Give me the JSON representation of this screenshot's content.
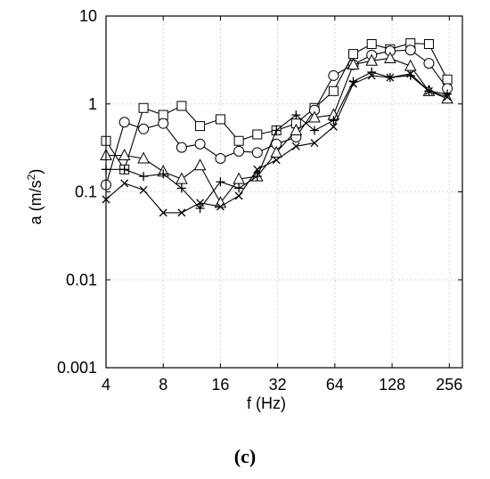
{
  "caption": "(c)",
  "chart_data": {
    "type": "line",
    "title": "",
    "xlabel": "f (Hz)",
    "ylabel_main": "a (m/s",
    "ylabel_exp": "2",
    "ylabel_close": ")",
    "xscale": "log2",
    "yscale": "log10",
    "xlim": [
      4,
      300
    ],
    "ylim": [
      0.001,
      10
    ],
    "xticks": [
      4,
      8,
      16,
      32,
      64,
      128,
      256
    ],
    "xtick_labels": [
      "4",
      "8",
      "16",
      "32",
      "64",
      "128",
      "256"
    ],
    "yticks": [
      0.001,
      0.01,
      0.1,
      1,
      10
    ],
    "ytick_labels": [
      "0.001",
      "0.01",
      "0.1",
      "1",
      "10"
    ],
    "grid": true,
    "series": [
      {
        "marker": "square",
        "x": [
          4,
          5,
          6.3,
          8,
          10,
          12.5,
          16,
          20,
          25,
          31.5,
          40,
          50,
          63,
          80,
          100,
          125,
          160,
          200,
          250
        ],
        "values": [
          0.38,
          0.18,
          0.9,
          0.75,
          0.95,
          0.56,
          0.67,
          0.38,
          0.45,
          0.5,
          0.6,
          0.9,
          1.4,
          3.7,
          4.8,
          4.2,
          4.9,
          4.8,
          1.9
        ]
      },
      {
        "marker": "circle",
        "x": [
          4,
          5,
          6.3,
          8,
          10,
          12.5,
          16,
          20,
          25,
          31.5,
          40,
          50,
          63,
          80,
          100,
          125,
          160,
          200,
          250
        ],
        "values": [
          0.12,
          0.62,
          0.52,
          0.6,
          0.32,
          0.35,
          0.24,
          0.29,
          0.28,
          0.35,
          0.42,
          0.85,
          2.1,
          2.8,
          3.6,
          4.0,
          4.1,
          2.9,
          1.5
        ]
      },
      {
        "marker": "triangle",
        "x": [
          4,
          5,
          6.3,
          8,
          10,
          12.5,
          16,
          20,
          25,
          31.5,
          40,
          50,
          63,
          80,
          100,
          125,
          160,
          200,
          250
        ],
        "values": [
          0.26,
          0.26,
          0.24,
          0.17,
          0.14,
          0.2,
          0.075,
          0.14,
          0.15,
          0.28,
          0.5,
          0.7,
          0.75,
          2.8,
          3.1,
          3.3,
          2.7,
          1.4,
          1.15
        ]
      },
      {
        "marker": "plus",
        "x": [
          4,
          5,
          6.3,
          8,
          10,
          12.5,
          16,
          20,
          25,
          31.5,
          40,
          50,
          63,
          80,
          100,
          125,
          160,
          200,
          250
        ],
        "values": [
          0.18,
          0.18,
          0.15,
          0.16,
          0.11,
          0.065,
          0.13,
          0.11,
          0.15,
          0.5,
          0.75,
          0.5,
          0.65,
          1.8,
          2.3,
          2.0,
          2.1,
          1.4,
          1.3
        ]
      },
      {
        "marker": "x",
        "x": [
          4,
          5,
          6.3,
          8,
          10,
          12.5,
          16,
          20,
          25,
          31.5,
          40,
          50,
          63,
          80,
          100,
          125,
          160,
          200,
          250
        ],
        "values": [
          0.082,
          0.125,
          0.105,
          0.058,
          0.058,
          0.075,
          0.068,
          0.09,
          0.18,
          0.23,
          0.33,
          0.36,
          0.55,
          1.7,
          2.1,
          2.0,
          2.2,
          1.4,
          1.2
        ]
      }
    ]
  }
}
